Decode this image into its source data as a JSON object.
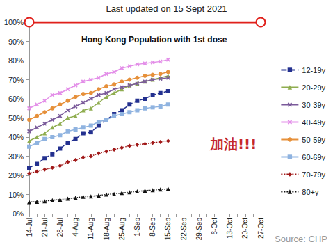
{
  "chart_data": {
    "type": "line",
    "title": "Hong Kong Population with 1st dose",
    "annotations": [
      "Last updated on 15 Sept 2021",
      "加油!!!",
      "Source: CHP"
    ],
    "categories": [
      "14-Jul",
      null,
      "21-Jul",
      null,
      "28-Jul",
      null,
      "4-Aug",
      null,
      "11-Aug",
      null,
      "18-Aug",
      null,
      "25-Aug",
      null,
      "1-Sep",
      null,
      "8-Sep",
      null,
      "15-Sep",
      null,
      "22-Sep",
      null,
      "29-Sep",
      null,
      "6-Oct",
      null,
      "13-Oct",
      null,
      "20-Oct",
      null,
      "27-Oct"
    ],
    "reference_line": 100,
    "series": [
      {
        "name": "12-19y",
        "color": "#23308f",
        "marker": "square",
        "line_style": "dashed",
        "values": [
          24,
          26,
          29,
          31,
          34,
          37,
          39,
          42,
          42.5,
          46,
          49,
          52,
          54,
          57,
          59,
          60,
          62,
          63,
          64,
          null,
          null,
          null,
          null,
          null,
          null,
          null,
          null,
          null,
          null,
          null,
          null
        ]
      },
      {
        "name": "20-29y",
        "color": "#8fad4f",
        "marker": "triangle",
        "line_style": "solid",
        "values": [
          38,
          40,
          42,
          45,
          47,
          50,
          51,
          54,
          55,
          58,
          61,
          63,
          65,
          67,
          68,
          69,
          70,
          71,
          72,
          null,
          null,
          null,
          null,
          null,
          null,
          null,
          null,
          null,
          null,
          null,
          null
        ]
      },
      {
        "name": "30-39y",
        "color": "#7a5a9a",
        "marker": "x",
        "line_style": "solid",
        "values": [
          43,
          45,
          47,
          49,
          51,
          54,
          56,
          58,
          60,
          62,
          63,
          65,
          66,
          67,
          68,
          69,
          70,
          70.5,
          71,
          null,
          null,
          null,
          null,
          null,
          null,
          null,
          null,
          null,
          null,
          null,
          null
        ]
      },
      {
        "name": "40-49y",
        "color": "#e38ee8",
        "marker": "x",
        "line_style": "solid",
        "values": [
          55,
          57,
          59,
          62,
          63,
          65,
          67,
          69,
          70,
          71,
          73,
          74,
          76,
          77,
          78,
          78.5,
          79,
          79.5,
          80.5,
          null,
          null,
          null,
          null,
          null,
          null,
          null,
          null,
          null,
          null,
          null,
          null
        ]
      },
      {
        "name": "50-59y",
        "color": "#e6903a",
        "marker": "circle",
        "line_style": "solid",
        "values": [
          49,
          51,
          53,
          55,
          57,
          59,
          61,
          62.5,
          63,
          65,
          66.5,
          67.5,
          69,
          70,
          71,
          72,
          72.5,
          73,
          74,
          null,
          null,
          null,
          null,
          null,
          null,
          null,
          null,
          null,
          null,
          null,
          null
        ]
      },
      {
        "name": "60-69y",
        "color": "#8fb3e0",
        "marker": "dash",
        "line_style": "solid",
        "values": [
          35,
          37,
          39,
          40,
          41,
          43,
          44,
          45,
          46,
          48,
          49,
          51,
          52,
          53,
          54,
          55,
          55.5,
          56,
          57,
          null,
          null,
          null,
          null,
          null,
          null,
          null,
          null,
          null,
          null,
          null,
          null
        ]
      },
      {
        "name": "70-79y",
        "color": "#a01818",
        "marker": "diamond",
        "line_style": "dotted",
        "values": [
          21,
          22,
          23,
          24,
          25,
          27,
          28,
          29.5,
          30,
          31.5,
          32.5,
          33.5,
          34.5,
          35.5,
          36,
          36.5,
          37,
          37.5,
          38,
          null,
          null,
          null,
          null,
          null,
          null,
          null,
          null,
          null,
          null,
          null,
          null
        ]
      },
      {
        "name": "80+y",
        "color": "#111111",
        "marker": "triangle",
        "line_style": "dotted",
        "values": [
          6,
          6.2,
          6.5,
          7,
          7.3,
          7.8,
          8.3,
          8.8,
          9,
          9.5,
          10,
          10.3,
          10.8,
          11.2,
          11.6,
          12,
          12.3,
          12.6,
          13,
          null,
          null,
          null,
          null,
          null,
          null,
          null,
          null,
          null,
          null,
          null,
          null
        ]
      }
    ],
    "ylim": [
      0,
      100
    ],
    "yticks": [
      {
        "value": 0,
        "label": "0%"
      },
      {
        "value": 10,
        "label": "10%"
      },
      {
        "value": 20,
        "label": "20%"
      },
      {
        "value": 30,
        "label": "30%"
      },
      {
        "value": 40,
        "label": "40%"
      },
      {
        "value": 50,
        "label": "50%"
      },
      {
        "value": 60,
        "label": "60%"
      },
      {
        "value": 70,
        "label": "70%"
      },
      {
        "value": 80,
        "label": "80%"
      },
      {
        "value": 90,
        "label": "90%"
      },
      {
        "value": 100,
        "label": "100%"
      }
    ],
    "grid": false,
    "legend": "right"
  }
}
